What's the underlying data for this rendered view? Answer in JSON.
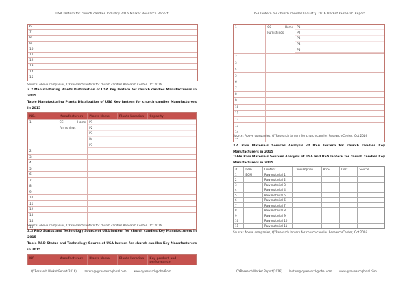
{
  "document": {
    "header_title": "USA lantern for church candles Industry 2016 Market Research Report",
    "source_note": "Source: Above companies, QYResearch lantern for church candles Research Center, Oct 2016",
    "footer": {
      "report_name": "QYResearch Market Report(2016)",
      "email": "lantern@qyresearchglobal.com",
      "website": "www.qyresearchglobal.com"
    },
    "colors": {
      "table_header_bg": "#c5524e",
      "table_header_text": "#6e2522",
      "red_table_border": "#ddb0ad",
      "gray_table_border": "#ababab"
    }
  },
  "left_page": {
    "page_number": "6",
    "overflow_table": {
      "rows": [
        "6",
        "7",
        "8",
        "9",
        "10",
        "11",
        "12",
        "13",
        "14",
        "15"
      ]
    },
    "section_3_2": {
      "heading": "3.2 Manufacturing Plants Distribution of USA Key lantern for church candles Manufacturers in 2015",
      "table_caption": "Table Manufacturing Plants Distribution of USA Key lantern for church candles Manufacturers in 2015",
      "plants_table": {
        "headers": [
          "NO.",
          "Manufacturers",
          "Plants Name",
          "Plants Location",
          "Capacity"
        ],
        "row_1": {
          "no": "1",
          "manufacturer": "CC Home Furnishings",
          "plants": "P1\nP2\nP3\nP4\nP5"
        },
        "empty_rows": [
          "2",
          "3",
          "4",
          "5",
          "6",
          "7",
          "8",
          "9",
          "10",
          "11",
          "12",
          "13",
          "14",
          "15"
        ]
      }
    },
    "section_3_3": {
      "heading": "3.3 R&D Status and Technology Source of USA lantern for church candles Key Manufacturers in 2015",
      "table_caption": "Table R&D Status and Technology Source of USA lantern for church candles Key Manufacturers in 2015",
      "rd_table": {
        "headers": [
          "NO.",
          "Manufacturers",
          "Plants Name",
          "Plants Location",
          "Key product and performance"
        ]
      }
    }
  },
  "right_page": {
    "page_number": "7",
    "rd_table_continued": {
      "row_1": {
        "no": "1",
        "manufacturer": "CC Home Furnishings",
        "plants": "P1\nP2\nP3\nP4\nP5"
      },
      "empty_rows": [
        "2",
        "3",
        "4",
        "5",
        "6",
        "7",
        "8",
        "9",
        "10",
        "11",
        "12",
        "13",
        "14",
        "15"
      ]
    },
    "section_3_4": {
      "heading": "3.4 Raw Materials Sources Analysis of USA lantern for church candles Key Manufacturers in 2015",
      "table_caption": "Table Raw Materials Sources Analysis of USA and USA lantern for church candles Key Manufacturers in 2015",
      "materials_table": {
        "headers": [
          "#",
          "Item",
          "Content",
          "Consumption",
          "Price",
          "Cost",
          "Source"
        ],
        "rows": [
          {
            "no": "1",
            "item": "BOM",
            "content": "Raw material 1"
          },
          {
            "no": "2",
            "item": "",
            "content": "Raw material 2"
          },
          {
            "no": "3",
            "item": "",
            "content": "Raw material 3"
          },
          {
            "no": "4",
            "item": "",
            "content": "Raw material 4"
          },
          {
            "no": "5",
            "item": "",
            "content": "Raw material 5"
          },
          {
            "no": "6",
            "item": "",
            "content": "Raw material 6"
          },
          {
            "no": "7",
            "item": "",
            "content": "Raw material 7"
          },
          {
            "no": "8",
            "item": "",
            "content": "Raw material 8"
          },
          {
            "no": "9",
            "item": "",
            "content": "Raw material 9"
          },
          {
            "no": "10",
            "item": "",
            "content": "Raw material 10"
          },
          {
            "no": "11",
            "item": "",
            "content": "Raw material 11"
          }
        ]
      }
    }
  }
}
